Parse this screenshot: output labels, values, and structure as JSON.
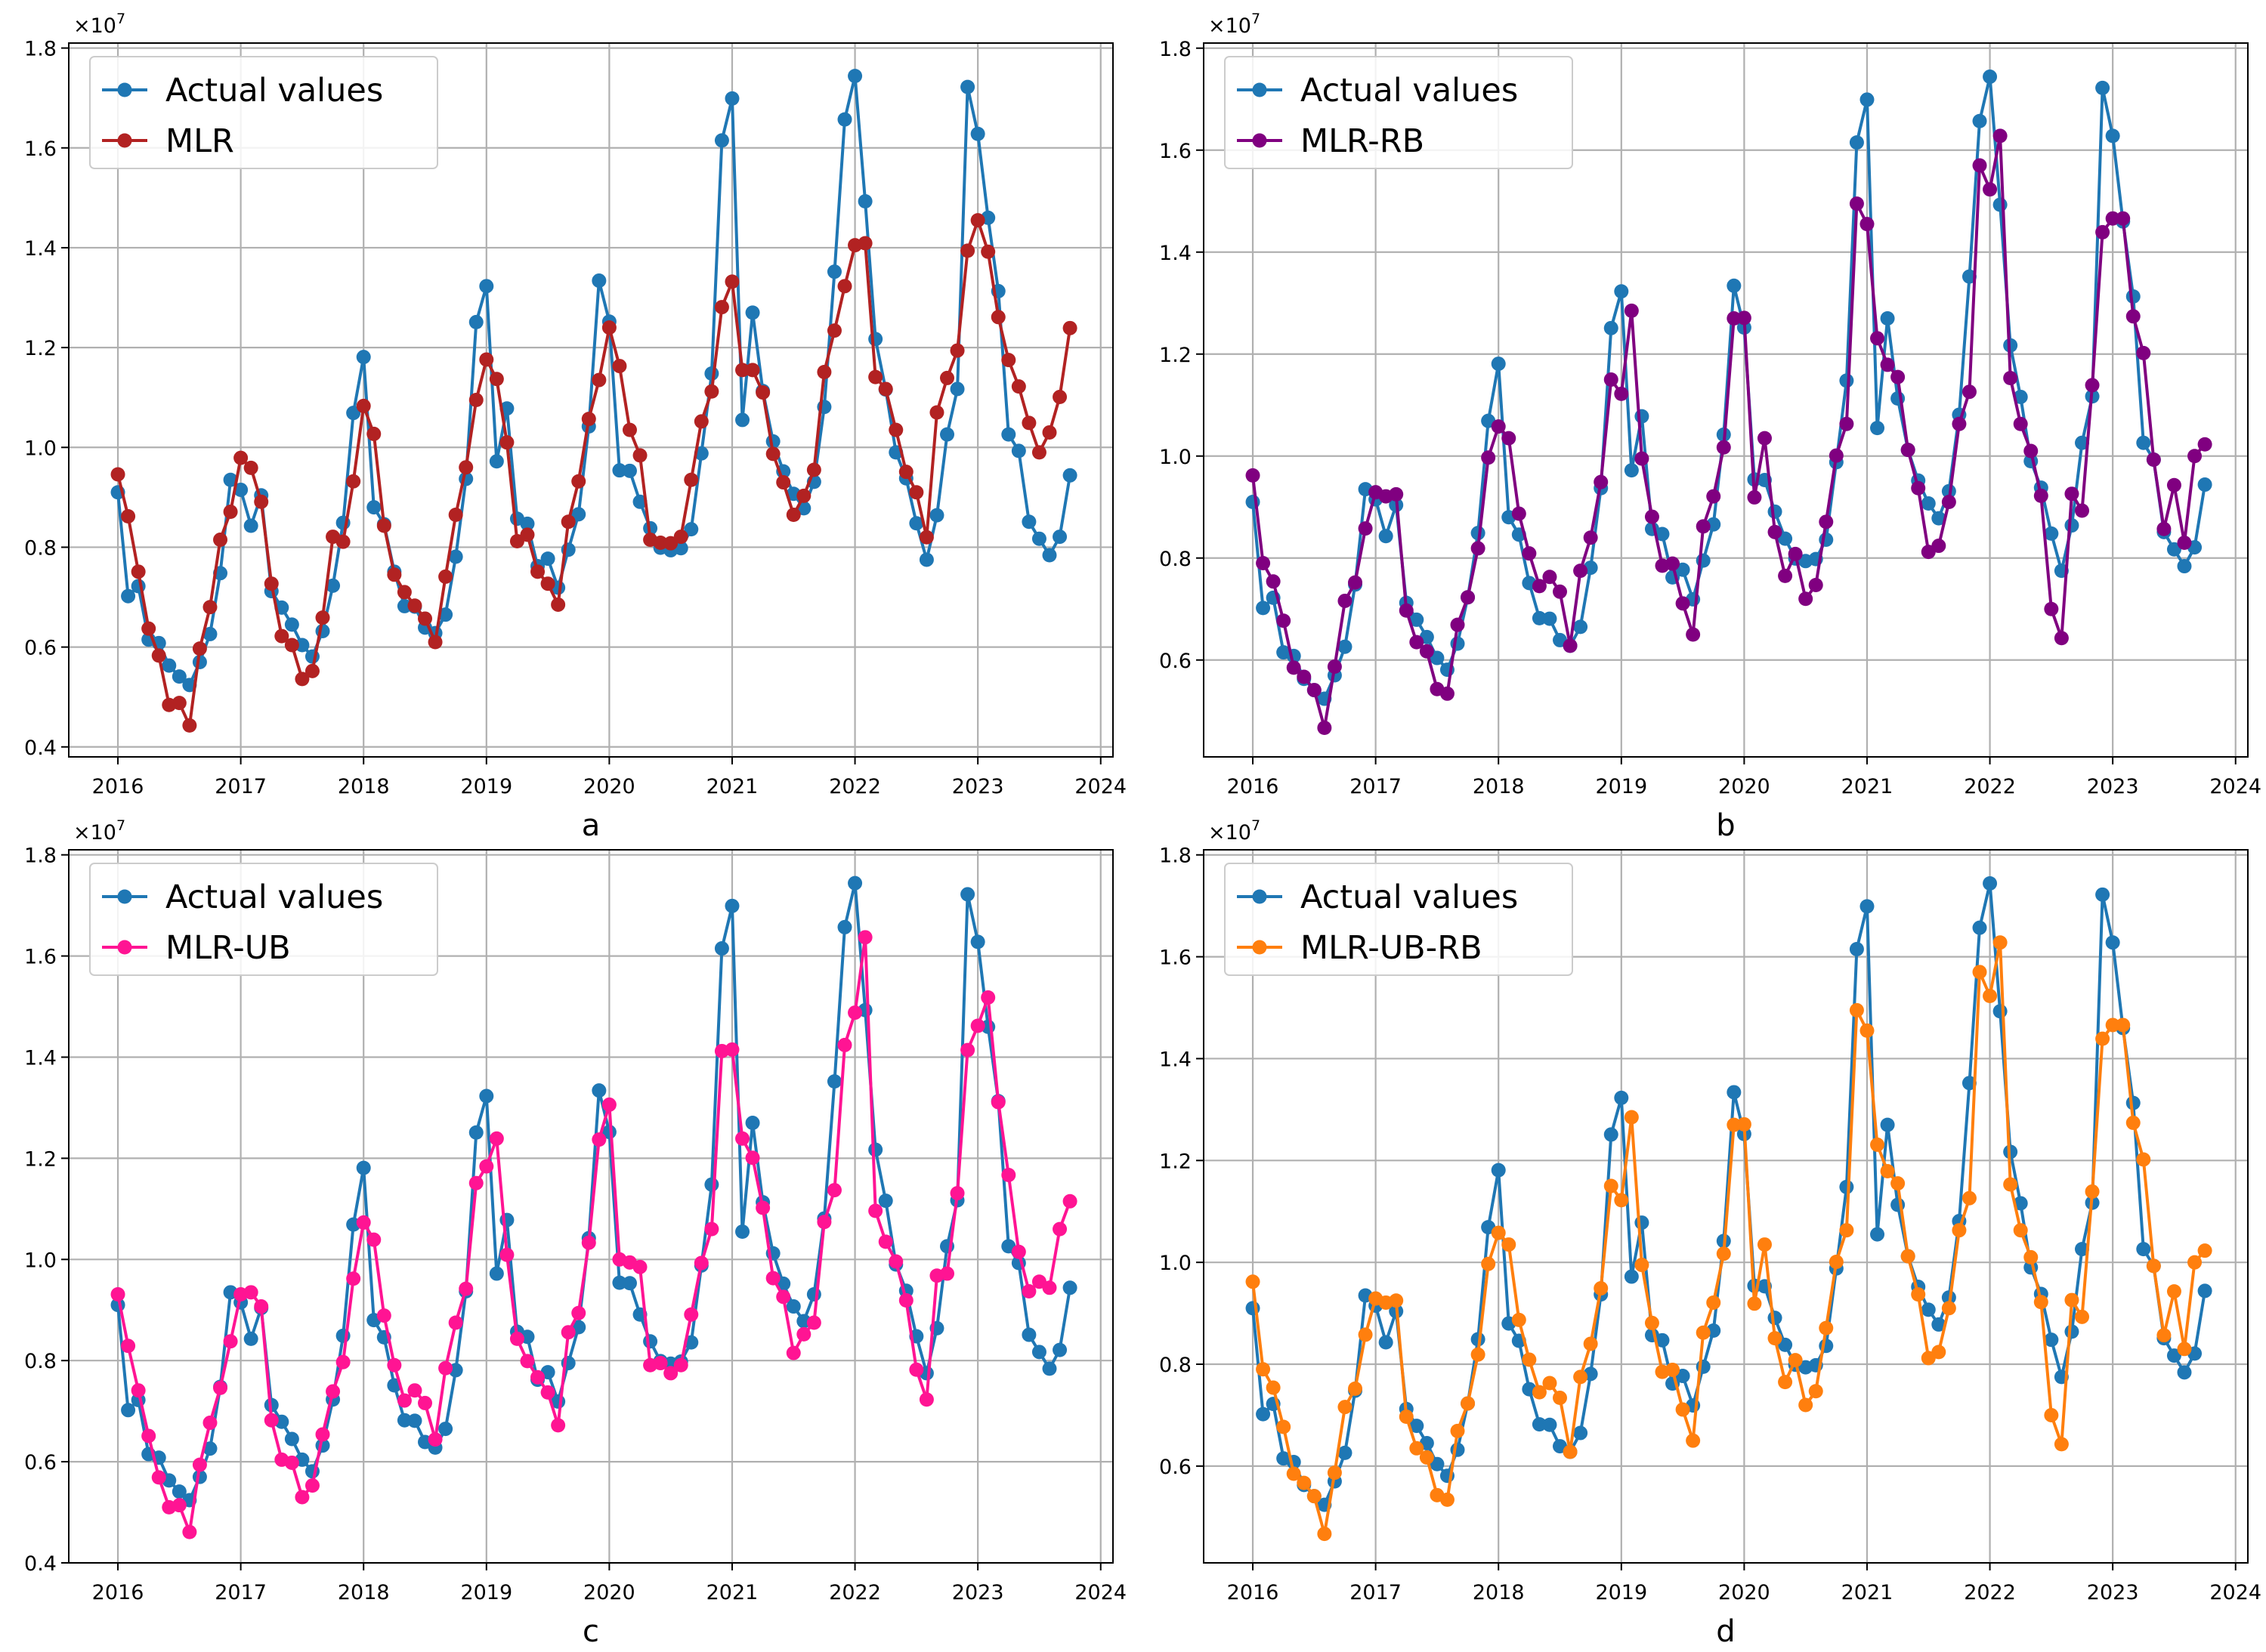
{
  "chart_data": [
    {
      "type": "line",
      "panel_label": "a",
      "x_tick_labels": [
        "2016",
        "2017",
        "2018",
        "2019",
        "2020",
        "2021",
        "2022",
        "2023",
        "2024"
      ],
      "x_range": [
        2015.6,
        2024.1
      ],
      "y_tick_labels": [
        "0.4",
        "0.6",
        "0.8",
        "1.0",
        "1.2",
        "1.4",
        "1.6",
        "1.8"
      ],
      "y_range": [
        0.38,
        1.81
      ],
      "y_exponent": "×10^7",
      "legend_position": "top-left",
      "grid": true,
      "series": [
        {
          "name": "Actual values",
          "color": "#1f77b4",
          "ref": "actual"
        },
        {
          "name": "MLR",
          "color": "#b22222",
          "values": [
            0.946,
            0.862,
            0.751,
            0.637,
            0.583,
            0.484,
            0.488,
            0.443,
            0.597,
            0.68,
            0.815,
            0.871,
            0.979,
            0.959,
            0.891,
            0.727,
            0.622,
            0.604,
            0.536,
            0.552,
            0.659,
            0.821,
            0.811,
            0.932,
            1.083,
            1.027,
            0.843,
            0.745,
            0.71,
            0.683,
            0.657,
            0.61,
            0.741,
            0.865,
            0.96,
            1.095,
            1.176,
            1.137,
            1.01,
            0.812,
            0.825,
            0.751,
            0.727,
            0.685,
            0.851,
            0.932,
            1.057,
            1.135,
            1.24,
            1.163,
            1.035,
            0.984,
            0.815,
            0.809,
            0.808,
            0.821,
            0.935,
            1.052,
            1.112,
            1.281,
            1.332,
            1.155,
            1.155,
            1.11,
            0.987,
            0.93,
            0.865,
            0.903,
            0.955,
            1.151,
            1.234,
            1.323,
            1.405,
            1.409,
            1.141,
            1.117,
            1.035,
            0.951,
            0.91,
            0.82,
            1.07,
            1.139,
            1.194,
            1.394,
            1.455,
            1.392,
            1.261,
            1.175,
            1.122,
            1.049,
            0.99,
            1.03,
            1.101,
            1.239
          ]
        }
      ],
      "x": "actual_x"
    },
    {
      "type": "line",
      "panel_label": "b",
      "x_tick_labels": [
        "2016",
        "2017",
        "2018",
        "2019",
        "2020",
        "2021",
        "2022",
        "2023",
        "2024"
      ],
      "x_range": [
        2015.6,
        2024.1
      ],
      "y_tick_labels": [
        "0.6",
        "0.8",
        "1.0",
        "1.2",
        "1.4",
        "1.6",
        "1.8"
      ],
      "y_range": [
        0.41,
        1.81
      ],
      "y_exponent": "×10^7",
      "legend_position": "top-left",
      "grid": true,
      "series": [
        {
          "name": "Actual values",
          "color": "#1f77b4",
          "ref": "actual"
        },
        {
          "name": "MLR-RB",
          "color": "#800080",
          "values": [
            0.962,
            0.79,
            0.754,
            0.677,
            0.585,
            0.567,
            0.541,
            0.467,
            0.587,
            0.716,
            0.752,
            0.858,
            0.929,
            0.921,
            0.925,
            0.697,
            0.635,
            0.617,
            0.543,
            0.534,
            0.669,
            0.723,
            0.819,
            0.997,
            1.058,
            1.035,
            0.887,
            0.809,
            0.745,
            0.763,
            0.734,
            0.628,
            0.775,
            0.84,
            0.949,
            1.15,
            1.122,
            1.285,
            0.995,
            0.881,
            0.785,
            0.789,
            0.711,
            0.65,
            0.862,
            0.921,
            1.017,
            1.27,
            1.271,
            0.919,
            1.035,
            0.851,
            0.765,
            0.808,
            0.72,
            0.747,
            0.871,
            1.001,
            1.063,
            1.495,
            1.455,
            1.231,
            1.179,
            1.155,
            1.012,
            0.937,
            0.812,
            0.824,
            0.91,
            1.063,
            1.126,
            1.57,
            1.523,
            1.628,
            1.153,
            1.063,
            1.01,
            0.922,
            0.7,
            0.643,
            0.926,
            0.893,
            1.139,
            1.439,
            1.466,
            1.466,
            1.274,
            1.202,
            0.993,
            0.857,
            0.943,
            0.83,
            1.0,
            1.023
          ]
        }
      ],
      "x": "actual_x"
    },
    {
      "type": "line",
      "panel_label": "c",
      "x_tick_labels": [
        "2016",
        "2017",
        "2018",
        "2019",
        "2020",
        "2021",
        "2022",
        "2023",
        "2024"
      ],
      "x_range": [
        2015.6,
        2024.1
      ],
      "y_tick_labels": [
        "0.4",
        "0.6",
        "0.8",
        "1.0",
        "1.2",
        "1.4",
        "1.6",
        "1.8"
      ],
      "y_range": [
        0.4,
        1.81
      ],
      "y_exponent": "×10^7",
      "legend_position": "top-left",
      "grid": true,
      "series": [
        {
          "name": "Actual values",
          "color": "#1f77b4",
          "ref": "actual"
        },
        {
          "name": "MLR-UB",
          "color": "#ff1493",
          "values": [
            0.931,
            0.829,
            0.741,
            0.651,
            0.569,
            0.51,
            0.514,
            0.461,
            0.594,
            0.677,
            0.746,
            0.838,
            0.931,
            0.935,
            0.907,
            0.682,
            0.604,
            0.598,
            0.53,
            0.553,
            0.654,
            0.739,
            0.797,
            0.962,
            1.073,
            1.039,
            0.889,
            0.791,
            0.721,
            0.741,
            0.716,
            0.644,
            0.785,
            0.875,
            0.942,
            1.151,
            1.184,
            1.239,
            1.009,
            0.843,
            0.799,
            0.767,
            0.737,
            0.672,
            0.856,
            0.894,
            1.033,
            1.237,
            1.306,
            1.0,
            0.994,
            0.985,
            0.791,
            0.795,
            0.775,
            0.791,
            0.891,
            0.993,
            1.06,
            1.412,
            1.415,
            1.239,
            1.201,
            1.102,
            0.963,
            0.926,
            0.815,
            0.852,
            0.875,
            1.074,
            1.137,
            1.424,
            1.488,
            1.637,
            1.096,
            1.035,
            0.996,
            0.919,
            0.782,
            0.723,
            0.968,
            0.972,
            1.131,
            1.414,
            1.462,
            1.518,
            1.311,
            1.167,
            1.015,
            0.937,
            0.956,
            0.944,
            1.06,
            1.115
          ]
        }
      ],
      "x": "actual_x"
    },
    {
      "type": "line",
      "panel_label": "d",
      "x_tick_labels": [
        "2016",
        "2017",
        "2018",
        "2019",
        "2020",
        "2021",
        "2022",
        "2023",
        "2024"
      ],
      "x_range": [
        2015.6,
        2024.1
      ],
      "y_tick_labels": [
        "0.6",
        "0.8",
        "1.0",
        "1.2",
        "1.4",
        "1.6",
        "1.8"
      ],
      "y_range": [
        0.41,
        1.81
      ],
      "y_exponent": "×10^7",
      "legend_position": "top-left",
      "grid": true,
      "series": [
        {
          "name": "Actual values",
          "color": "#1f77b4",
          "ref": "actual"
        },
        {
          "name": "MLR-UB-RB",
          "color": "#ff7f0e",
          "values": [
            0.962,
            0.79,
            0.754,
            0.677,
            0.585,
            0.567,
            0.541,
            0.467,
            0.587,
            0.716,
            0.752,
            0.858,
            0.929,
            0.921,
            0.925,
            0.697,
            0.635,
            0.617,
            0.543,
            0.534,
            0.669,
            0.723,
            0.819,
            0.997,
            1.058,
            1.035,
            0.887,
            0.809,
            0.745,
            0.763,
            0.734,
            0.628,
            0.775,
            0.84,
            0.949,
            1.15,
            1.122,
            1.285,
            0.995,
            0.881,
            0.785,
            0.789,
            0.711,
            0.65,
            0.862,
            0.921,
            1.017,
            1.27,
            1.271,
            0.919,
            1.035,
            0.851,
            0.765,
            0.808,
            0.72,
            0.747,
            0.871,
            1.001,
            1.063,
            1.495,
            1.455,
            1.231,
            1.179,
            1.155,
            1.012,
            0.937,
            0.812,
            0.824,
            0.91,
            1.063,
            1.126,
            1.57,
            1.523,
            1.628,
            1.153,
            1.063,
            1.01,
            0.922,
            0.7,
            0.643,
            0.926,
            0.893,
            1.139,
            1.439,
            1.466,
            1.466,
            1.274,
            1.202,
            0.993,
            0.857,
            0.943,
            0.83,
            1.0,
            1.023
          ]
        }
      ],
      "x": "actual_x"
    }
  ],
  "actual": {
    "x_start": 2016.0,
    "x_step_months": 1,
    "values": [
      0.91,
      0.702,
      0.722,
      0.615,
      0.608,
      0.563,
      0.541,
      0.524,
      0.57,
      0.626,
      0.748,
      0.935,
      0.915,
      0.843,
      0.904,
      0.712,
      0.679,
      0.645,
      0.604,
      0.581,
      0.632,
      0.723,
      0.849,
      1.069,
      1.181,
      0.88,
      0.846,
      0.751,
      0.682,
      0.681,
      0.639,
      0.628,
      0.665,
      0.781,
      0.937,
      1.251,
      1.323,
      0.972,
      1.078,
      0.857,
      0.847,
      0.762,
      0.777,
      0.719,
      0.795,
      0.866,
      1.042,
      1.334,
      1.252,
      0.954,
      0.953,
      0.891,
      0.838,
      0.799,
      0.794,
      0.798,
      0.836,
      0.988,
      1.148,
      1.615,
      1.699,
      1.055,
      1.27,
      1.113,
      1.012,
      0.952,
      0.907,
      0.878,
      0.931,
      1.081,
      1.352,
      1.657,
      1.744,
      1.493,
      1.217,
      1.116,
      0.99,
      0.938,
      0.848,
      0.775,
      0.864,
      1.026,
      1.117,
      1.722,
      1.628,
      1.46,
      1.313,
      1.026,
      0.993,
      0.851,
      0.817,
      0.784,
      0.821,
      0.944
    ]
  }
}
